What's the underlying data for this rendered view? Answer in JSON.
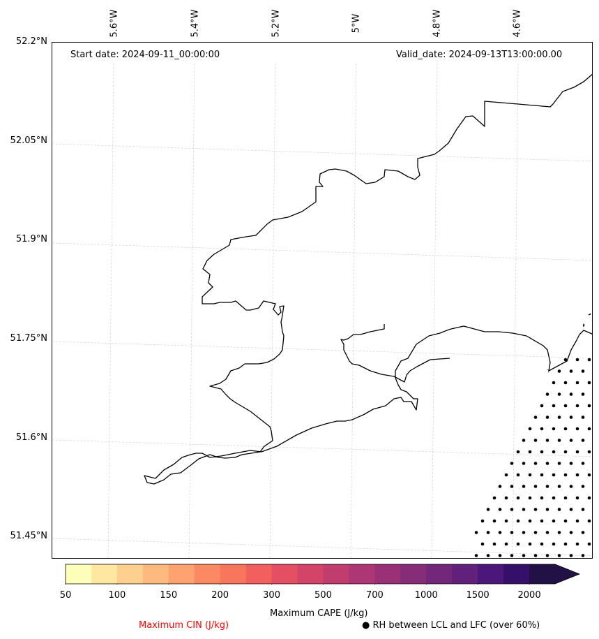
{
  "map": {
    "start_date": "Start date: 2024-09-11_00:00:00",
    "valid_date": "Valid_date: 2024-09-13T13:00:00.00",
    "longitude_labels": [
      "5.6°W",
      "5.4°W",
      "5.2°W",
      "5°W",
      "4.8°W",
      "4.6°W"
    ],
    "latitude_labels": [
      "52.2°N",
      "52.05°N",
      "51.9°N",
      "51.75°N",
      "51.6°N",
      "51.45°N"
    ],
    "coastline_color": "#000000",
    "gridline_color": "#cccccc",
    "stipple_color": "#000000"
  },
  "colorbar": {
    "title": "Maximum CAPE (J/kg)",
    "tick_labels": [
      "50",
      "100",
      "150",
      "200",
      "300",
      "500",
      "700",
      "1000",
      "1500",
      "2000"
    ],
    "colors": [
      "#fefebb",
      "#fee7a1",
      "#fed08f",
      "#feb97f",
      "#fea271",
      "#fc8963",
      "#f8765c",
      "#f1605c",
      "#e44f63",
      "#d44468",
      "#c13d6e",
      "#ad3674",
      "#9a3177",
      "#862c79",
      "#73277a",
      "#60207c",
      "#4b177b",
      "#35106a",
      "#211144"
    ],
    "extend": "max"
  },
  "legend": {
    "cin_label": "Maximum CIN (J/kg)",
    "cin_color": "#ff0000",
    "rh_label": "● RH between LCL and LFC (over 60%)"
  }
}
